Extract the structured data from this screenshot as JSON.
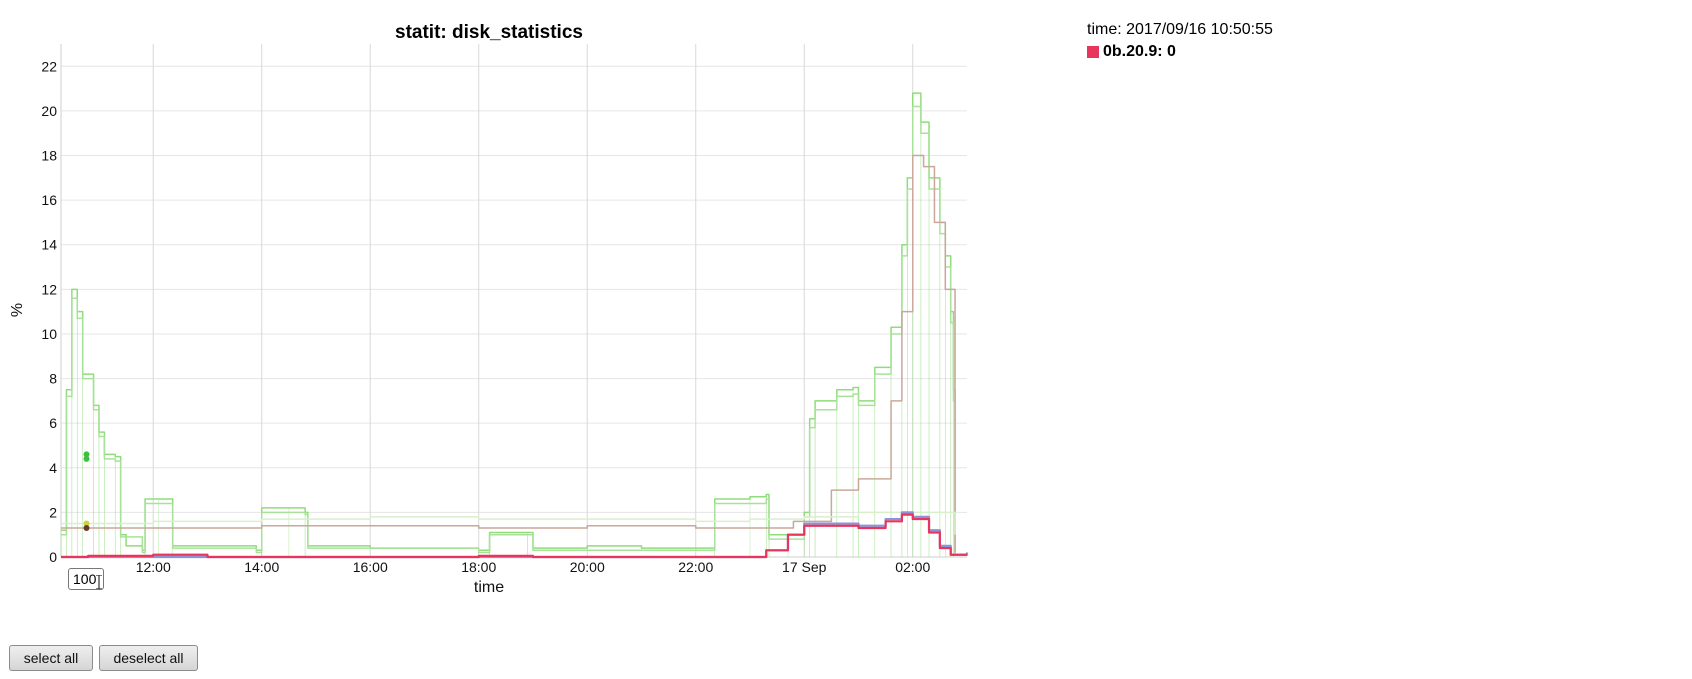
{
  "legend": {
    "time_text": "time: 2017/09/16 10:50:55",
    "entry_label": "0b.20.9: 0",
    "entry_color": "#e8355d"
  },
  "controls": {
    "range_value": "100",
    "select_all": "select all",
    "deselect_all": "deselect all"
  },
  "chart_data": {
    "type": "line",
    "title": "statit: disk_statistics",
    "xlabel": "time",
    "ylabel": "%",
    "xlim": [
      10.3,
      27.0
    ],
    "ylim": [
      0,
      23
    ],
    "yticks": [
      0,
      2,
      4,
      6,
      8,
      10,
      12,
      14,
      16,
      18,
      20,
      22
    ],
    "xticks": [
      {
        "x": 12,
        "label": "12:00"
      },
      {
        "x": 14,
        "label": "14:00"
      },
      {
        "x": 16,
        "label": "16:00"
      },
      {
        "x": 18,
        "label": "18:00"
      },
      {
        "x": 20,
        "label": "20:00"
      },
      {
        "x": 22,
        "label": "22:00"
      },
      {
        "x": 24,
        "label": "17 Sep"
      },
      {
        "x": 26,
        "label": "02:00"
      }
    ],
    "grid": true,
    "series": [
      {
        "color": "#8fdd7a",
        "points": [
          [
            10.3,
            1.2
          ],
          [
            10.4,
            7.5
          ],
          [
            10.5,
            12.0
          ],
          [
            10.6,
            11.0
          ],
          [
            10.7,
            8.2
          ],
          [
            10.9,
            6.8
          ],
          [
            11.0,
            5.6
          ],
          [
            11.1,
            4.6
          ],
          [
            11.3,
            4.5
          ],
          [
            11.4,
            1.0
          ],
          [
            11.5,
            0.5
          ],
          [
            11.8,
            0.3
          ],
          [
            11.85,
            2.6
          ],
          [
            12.1,
            2.6
          ],
          [
            12.35,
            2.6
          ],
          [
            12.36,
            0.5
          ],
          [
            13.9,
            0.3
          ],
          [
            14.0,
            2.2
          ],
          [
            14.5,
            2.2
          ],
          [
            14.8,
            2.0
          ],
          [
            14.85,
            0.5
          ],
          [
            16.0,
            0.4
          ],
          [
            18.0,
            0.3
          ],
          [
            18.2,
            1.1
          ],
          [
            18.9,
            1.1
          ],
          [
            19.0,
            0.4
          ],
          [
            20.0,
            0.5
          ],
          [
            21.0,
            0.4
          ],
          [
            22.3,
            0.4
          ],
          [
            22.35,
            2.6
          ],
          [
            23.0,
            2.7
          ],
          [
            23.3,
            2.8
          ],
          [
            23.35,
            1.0
          ],
          [
            23.7,
            1.0
          ],
          [
            24.0,
            2.0
          ],
          [
            24.1,
            6.2
          ],
          [
            24.2,
            7.0
          ],
          [
            24.6,
            7.5
          ],
          [
            24.9,
            7.6
          ],
          [
            25.0,
            7.0
          ],
          [
            25.3,
            8.5
          ],
          [
            25.6,
            10.3
          ],
          [
            25.8,
            14.0
          ],
          [
            25.9,
            17.0
          ],
          [
            26.0,
            20.8
          ],
          [
            26.15,
            19.5
          ],
          [
            26.3,
            17.0
          ],
          [
            26.5,
            15.0
          ],
          [
            26.6,
            13.5
          ],
          [
            26.7,
            11.0
          ],
          [
            26.75,
            7.5
          ],
          [
            26.78,
            0.2
          ]
        ]
      },
      {
        "color": "#a8e29a",
        "points": [
          [
            10.3,
            1.0
          ],
          [
            10.4,
            7.2
          ],
          [
            10.5,
            11.6
          ],
          [
            10.6,
            10.7
          ],
          [
            10.7,
            8.0
          ],
          [
            10.9,
            6.6
          ],
          [
            11.0,
            5.4
          ],
          [
            11.1,
            4.4
          ],
          [
            11.3,
            4.3
          ],
          [
            11.4,
            0.9
          ],
          [
            11.8,
            0.2
          ],
          [
            11.85,
            2.4
          ],
          [
            12.35,
            2.4
          ],
          [
            12.36,
            0.4
          ],
          [
            13.9,
            0.2
          ],
          [
            14.0,
            2.0
          ],
          [
            14.8,
            1.9
          ],
          [
            14.85,
            0.4
          ],
          [
            18.0,
            0.2
          ],
          [
            18.2,
            1.0
          ],
          [
            18.9,
            1.0
          ],
          [
            19.0,
            0.3
          ],
          [
            22.3,
            0.3
          ],
          [
            22.35,
            2.4
          ],
          [
            23.3,
            2.6
          ],
          [
            23.35,
            0.8
          ],
          [
            24.0,
            1.8
          ],
          [
            24.1,
            5.8
          ],
          [
            24.2,
            6.6
          ],
          [
            24.6,
            7.2
          ],
          [
            24.9,
            7.3
          ],
          [
            25.0,
            6.8
          ],
          [
            25.3,
            8.2
          ],
          [
            25.6,
            10.0
          ],
          [
            25.8,
            13.5
          ],
          [
            25.9,
            16.5
          ],
          [
            26.0,
            20.2
          ],
          [
            26.15,
            19.0
          ],
          [
            26.3,
            16.5
          ],
          [
            26.5,
            14.5
          ],
          [
            26.6,
            13.0
          ],
          [
            26.7,
            10.5
          ],
          [
            26.75,
            7.0
          ],
          [
            26.78,
            0.1
          ]
        ]
      },
      {
        "color": "#c9a79b",
        "points": [
          [
            10.3,
            1.3
          ],
          [
            11.0,
            1.3
          ],
          [
            12.0,
            1.3
          ],
          [
            14.0,
            1.4
          ],
          [
            16.0,
            1.4
          ],
          [
            18.0,
            1.3
          ],
          [
            20.0,
            1.4
          ],
          [
            22.0,
            1.3
          ],
          [
            23.0,
            1.3
          ],
          [
            23.8,
            1.6
          ],
          [
            24.5,
            3.0
          ],
          [
            25.0,
            3.5
          ],
          [
            25.6,
            7.0
          ],
          [
            25.8,
            11.0
          ],
          [
            26.0,
            18.0
          ],
          [
            26.2,
            17.5
          ],
          [
            26.4,
            15.0
          ],
          [
            26.6,
            12.0
          ],
          [
            26.78,
            0.2
          ]
        ]
      },
      {
        "color": "#d9efc9",
        "points": [
          [
            10.3,
            1.5
          ],
          [
            12.0,
            1.6
          ],
          [
            14.0,
            1.7
          ],
          [
            16.0,
            1.8
          ],
          [
            18.0,
            1.7
          ],
          [
            20.0,
            1.7
          ],
          [
            22.0,
            1.6
          ],
          [
            23.0,
            1.7
          ],
          [
            24.0,
            1.8
          ],
          [
            25.0,
            2.0
          ],
          [
            26.0,
            2.0
          ],
          [
            26.78,
            1.0
          ]
        ]
      },
      {
        "color": "#8c93d6",
        "points": [
          [
            10.3,
            0.0
          ],
          [
            23.0,
            0.0
          ],
          [
            23.3,
            0.3
          ],
          [
            23.7,
            1.0
          ],
          [
            24.0,
            1.5
          ],
          [
            24.5,
            1.5
          ],
          [
            25.0,
            1.4
          ],
          [
            25.5,
            1.7
          ],
          [
            25.8,
            2.0
          ],
          [
            26.0,
            1.8
          ],
          [
            26.3,
            1.2
          ],
          [
            26.5,
            0.5
          ],
          [
            26.7,
            0.1
          ],
          [
            27.0,
            0.2
          ]
        ]
      },
      {
        "color": "#e8355d",
        "points": [
          [
            10.3,
            0.0
          ],
          [
            10.8,
            0.05
          ],
          [
            12.0,
            0.1
          ],
          [
            13.0,
            0.0
          ],
          [
            18.0,
            0.05
          ],
          [
            19.0,
            0.0
          ],
          [
            23.0,
            0.0
          ],
          [
            23.3,
            0.3
          ],
          [
            23.7,
            1.0
          ],
          [
            24.0,
            1.4
          ],
          [
            24.5,
            1.4
          ],
          [
            25.0,
            1.3
          ],
          [
            25.5,
            1.6
          ],
          [
            25.8,
            1.9
          ],
          [
            26.0,
            1.7
          ],
          [
            26.3,
            1.1
          ],
          [
            26.5,
            0.4
          ],
          [
            26.7,
            0.1
          ],
          [
            27.0,
            0.1
          ]
        ]
      }
    ],
    "markers": [
      {
        "x": 10.77,
        "y": 4.6,
        "color": "#3fbf3f"
      },
      {
        "x": 10.77,
        "y": 4.4,
        "color": "#3fbf3f"
      },
      {
        "x": 10.77,
        "y": 1.5,
        "color": "#c8d33f"
      },
      {
        "x": 10.77,
        "y": 1.3,
        "color": "#6b3a2a"
      }
    ]
  }
}
